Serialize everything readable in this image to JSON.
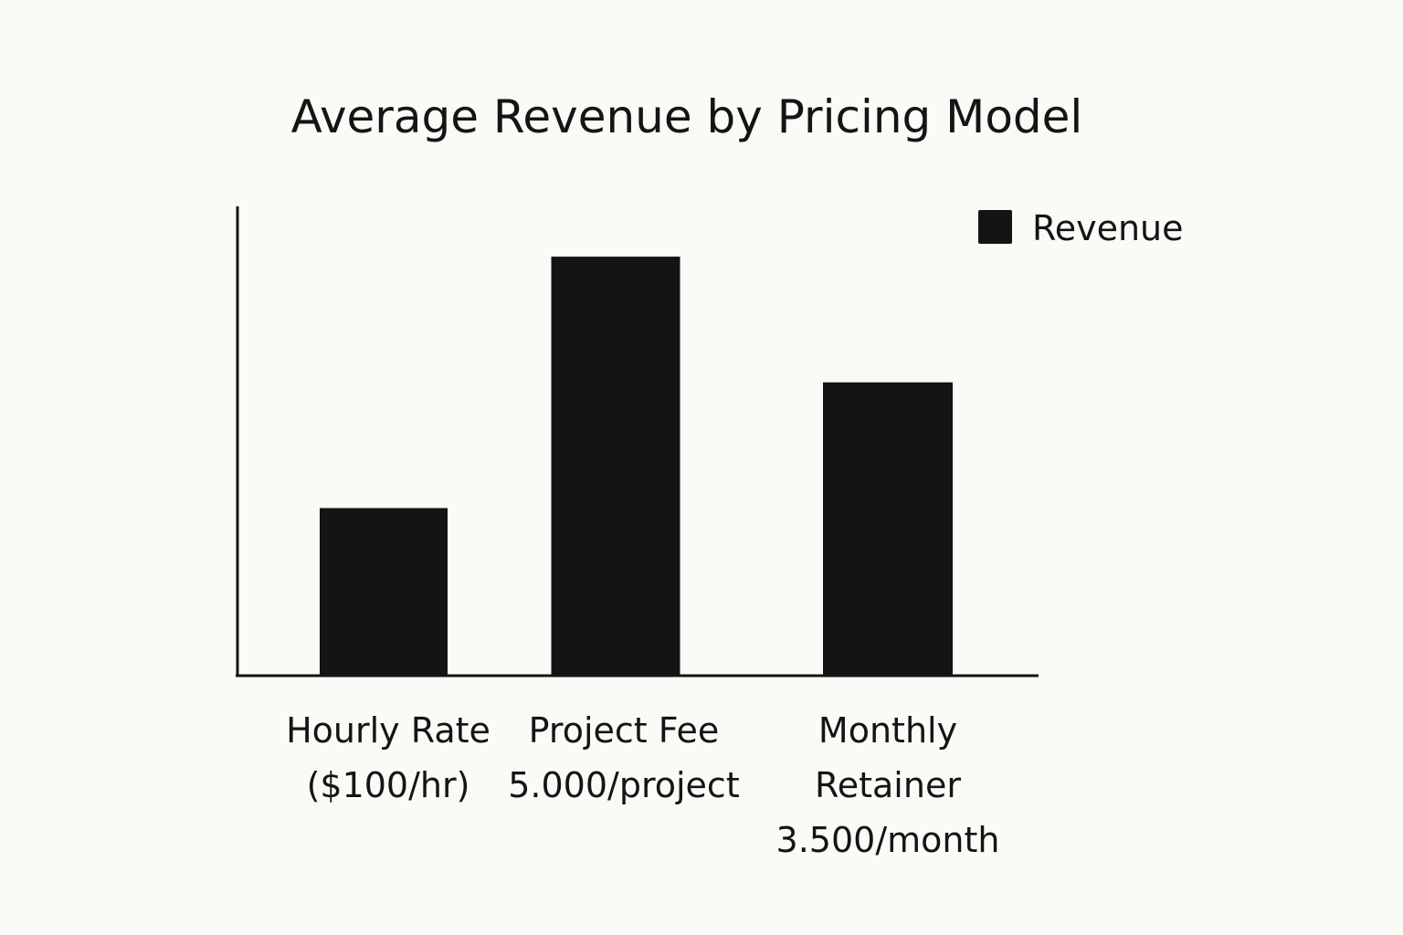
{
  "chart_data": {
    "type": "bar",
    "title": "Average Revenue by Pricing Model",
    "xlabel": "",
    "ylabel": "",
    "categories": [
      [
        "Hourly Rate",
        "($100/hr)"
      ],
      [
        "Project Fee",
        "5.000/project"
      ],
      [
        "Monthly",
        "Retainer",
        "3.500/month"
      ]
    ],
    "series": [
      {
        "name": "Revenue",
        "values": [
          2000,
          5000,
          3500
        ]
      }
    ],
    "ylim": [
      0,
      5600
    ],
    "grid": false,
    "legend": "top-right",
    "colors": {
      "bar": "#141414",
      "axis": "#141414",
      "background": "#fbfaf7"
    }
  }
}
